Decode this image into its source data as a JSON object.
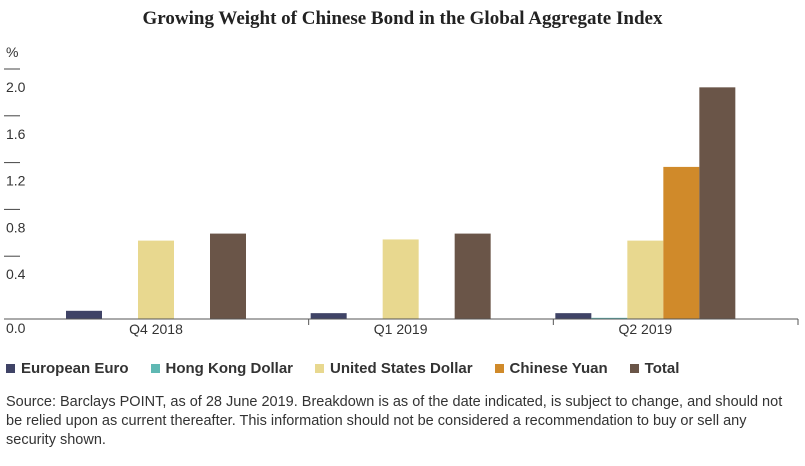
{
  "chart_data": {
    "type": "bar",
    "title": "Growing Weight of Chinese Bond in the Global Aggregate Index",
    "ylabel": "%",
    "ylim": [
      0,
      2.0
    ],
    "yticks": [
      "0.0",
      "0.4",
      "0.8",
      "1.2",
      "1.6",
      "2.0"
    ],
    "categories": [
      "Q4 2018",
      "Q1 2019",
      "Q2 2019"
    ],
    "series": [
      {
        "name": "European Euro",
        "color": "#3f4366",
        "values": [
          0.07,
          0.05,
          0.05
        ]
      },
      {
        "name": "Hong Kong Dollar",
        "color": "#5fb8b3",
        "values": [
          0.0,
          0.0,
          0.01
        ]
      },
      {
        "name": "United States Dollar",
        "color": "#e8d88f",
        "values": [
          0.67,
          0.68,
          0.67
        ]
      },
      {
        "name": "Chinese Yuan",
        "color": "#d08a2a",
        "values": [
          0.0,
          0.0,
          1.3
        ]
      },
      {
        "name": "Total",
        "color": "#6a5548",
        "values": [
          0.73,
          0.73,
          1.98
        ]
      }
    ],
    "grid": false,
    "legend_position": "bottom"
  },
  "source": "Source: Barclays POINT, as of 28 June 2019. Breakdown is as of the date indicated, is subject to change, and should not be relied upon as current thereafter. This information should not be considered a recommendation to buy or sell any security shown."
}
